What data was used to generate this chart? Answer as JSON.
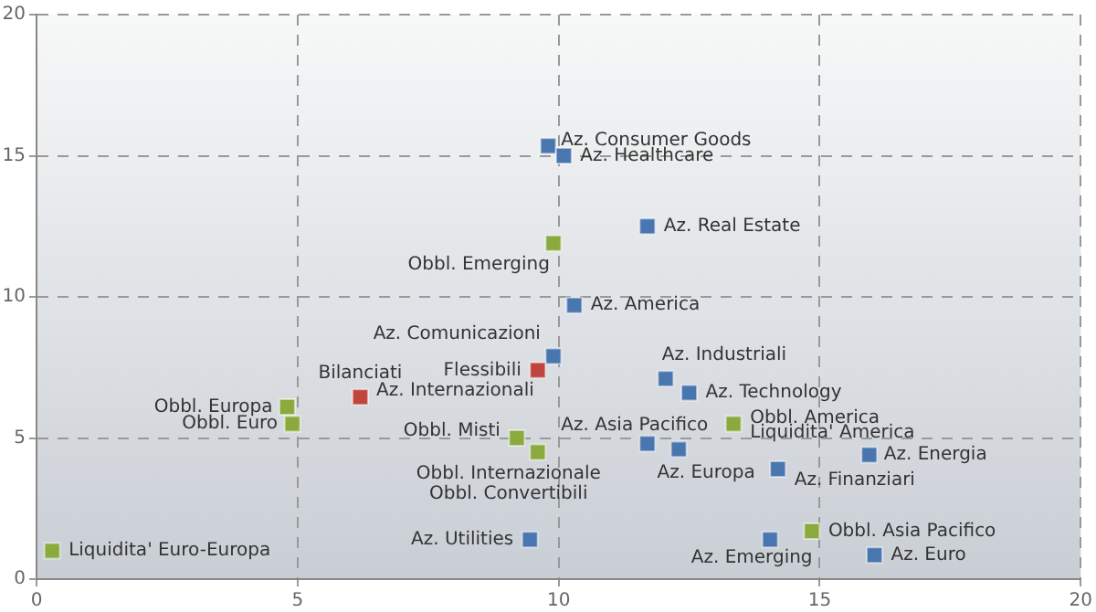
{
  "chart_data": {
    "type": "scatter",
    "marker": "square",
    "grid": true,
    "legend": false,
    "xlim": [
      0,
      20
    ],
    "xticks": [
      0,
      5,
      10,
      15,
      20
    ],
    "ylim": [
      0,
      20
    ],
    "yticks": [
      0,
      5,
      10,
      15,
      20
    ],
    "series": [
      {
        "color": "#4a76b0",
        "x": [
          9.8,
          10.1,
          11.7,
          10.3,
          9.9,
          null,
          12.05,
          12.5,
          11.7,
          12.3,
          14.2,
          15.95,
          9.45,
          14.05,
          16.05
        ],
        "values": [
          15.35,
          15.0,
          12.5,
          9.7,
          7.9,
          null,
          7.1,
          6.6,
          4.8,
          4.6,
          3.9,
          4.4,
          1.4,
          1.4,
          0.85
        ]
      },
      {
        "color": "#8aaa3e",
        "x": [
          9.9,
          4.8,
          4.9,
          9.2,
          9.6,
          null,
          0.3,
          13.35,
          null,
          14.85
        ],
        "values": [
          11.9,
          6.1,
          5.5,
          5.0,
          4.5,
          null,
          1.0,
          5.5,
          null,
          1.7
        ]
      },
      {
        "color": "#c0453f",
        "x": [
          6.2,
          9.6
        ],
        "values": [
          6.45,
          7.4
        ]
      }
    ],
    "annotations": [
      {
        "text": "Az. Consumer Goods",
        "x": 9.8,
        "y": 15.35
      },
      {
        "text": "Az. Healthcare",
        "x": 10.1,
        "y": 15.0
      },
      {
        "text": "Az. Real Estate",
        "x": 11.7,
        "y": 12.5
      },
      {
        "text": "Obbl. Emerging",
        "x": 9.9,
        "y": 11.9
      },
      {
        "text": "Az. America",
        "x": 10.3,
        "y": 9.7
      },
      {
        "text": "Az. Comunicazioni",
        "x": 9.9,
        "y": 7.9
      },
      {
        "text": "Flessibili",
        "x": 9.6,
        "y": 7.4
      },
      {
        "text": "Az. Internazionali",
        "x": 9.6,
        "y": 7.4
      },
      {
        "text": "Bilanciati",
        "x": 6.2,
        "y": 6.45
      },
      {
        "text": "Obbl. Europa",
        "x": 4.8,
        "y": 6.1
      },
      {
        "text": "Obbl. Euro",
        "x": 4.9,
        "y": 5.5
      },
      {
        "text": "Obbl. Misti",
        "x": 9.2,
        "y": 5.0
      },
      {
        "text": "Obbl. Internazionale",
        "x": 9.6,
        "y": 4.5
      },
      {
        "text": "Obbl. Convertibili",
        "x": 9.6,
        "y": 4.5
      },
      {
        "text": "Az. Utilities",
        "x": 9.45,
        "y": 1.4
      },
      {
        "text": "Liquidita' Euro-Europa",
        "x": 0.3,
        "y": 1.0
      },
      {
        "text": "Az. Industriali",
        "x": 12.05,
        "y": 7.1
      },
      {
        "text": "Az. Technology",
        "x": 12.5,
        "y": 6.6
      },
      {
        "text": "Obbl. America",
        "x": 13.35,
        "y": 5.5
      },
      {
        "text": "Liquidita' America",
        "x": 13.35,
        "y": 5.5
      },
      {
        "text": "Az. Asia Pacifico",
        "x": 11.7,
        "y": 4.8
      },
      {
        "text": "Az. Europa",
        "x": 12.3,
        "y": 4.6
      },
      {
        "text": "Az. Finanziari",
        "x": 14.2,
        "y": 3.9
      },
      {
        "text": "Az. Energia",
        "x": 15.95,
        "y": 4.4
      },
      {
        "text": "Obbl. Asia Pacifico",
        "x": 14.85,
        "y": 1.7
      },
      {
        "text": "Az. Emerging",
        "x": 14.05,
        "y": 1.4
      },
      {
        "text": "Az. Euro",
        "x": 16.05,
        "y": 0.85
      }
    ]
  }
}
